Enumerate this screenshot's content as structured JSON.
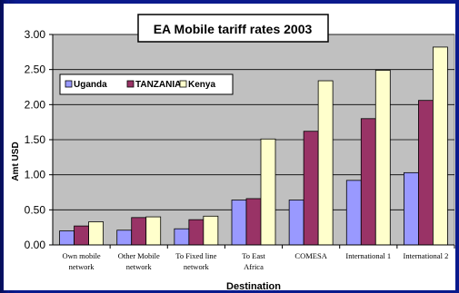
{
  "chart_data": {
    "type": "bar",
    "title": "EA Mobile tariff rates 2003",
    "xlabel": "Destination",
    "ylabel": "Amt USD",
    "ylim": [
      0,
      3.0
    ],
    "yticks": [
      "0.00",
      "0.50",
      "1.00",
      "1.50",
      "2.00",
      "2.50",
      "3.00"
    ],
    "grid": "horizontal",
    "legend_position": "top-left",
    "categories": [
      [
        "Own mobile",
        "network"
      ],
      [
        "Other Mobile",
        "network"
      ],
      [
        "To Fixed line",
        "network"
      ],
      [
        "To East",
        "Africa"
      ],
      [
        "COMESA"
      ],
      [
        "International 1"
      ],
      [
        "International 2"
      ]
    ],
    "series": [
      {
        "name": "Uganda",
        "color": "#9999ff",
        "values": [
          0.2,
          0.21,
          0.23,
          0.64,
          0.64,
          0.92,
          1.03
        ]
      },
      {
        "name": "TANZANIA",
        "color": "#993366",
        "values": [
          0.27,
          0.39,
          0.36,
          0.66,
          1.62,
          1.8,
          2.06
        ]
      },
      {
        "name": "Kenya",
        "color": "#ffffcc",
        "values": [
          0.33,
          0.4,
          0.41,
          1.51,
          2.34,
          2.49,
          2.82
        ]
      }
    ]
  }
}
